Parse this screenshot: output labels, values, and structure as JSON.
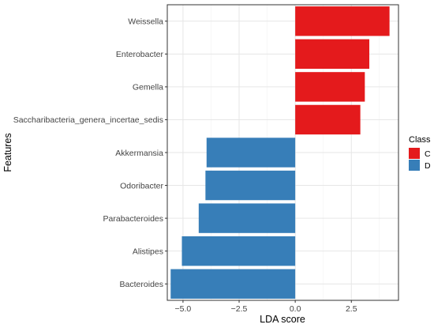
{
  "chart_data": {
    "type": "bar",
    "orientation": "horizontal",
    "xlabel": "LDA score",
    "ylabel": "Features",
    "xlim": [
      -5.7,
      4.6
    ],
    "xticks": [
      -5.0,
      -2.5,
      0.0,
      2.5
    ],
    "xtick_labels": [
      "−5.0",
      "−2.5",
      "0.0",
      "2.5"
    ],
    "grid": true,
    "categories": [
      "Weissella",
      "Enterobacter",
      "Gemella",
      "Saccharibacteria_genera_incertae_sedis",
      "Akkermansia",
      "Odoribacter",
      "Parabacteroides",
      "Alistipes",
      "Bacteroides"
    ],
    "values": [
      4.2,
      3.3,
      3.1,
      2.9,
      -3.95,
      -4.0,
      -4.3,
      -5.05,
      -5.55
    ],
    "classes": [
      "C",
      "C",
      "C",
      "C",
      "D",
      "D",
      "D",
      "D",
      "D"
    ],
    "legend": {
      "title": "Class",
      "placement": "right",
      "items": [
        {
          "label": "C",
          "color": "#e41a1c"
        },
        {
          "label": "D",
          "color": "#377eb8"
        }
      ]
    }
  }
}
